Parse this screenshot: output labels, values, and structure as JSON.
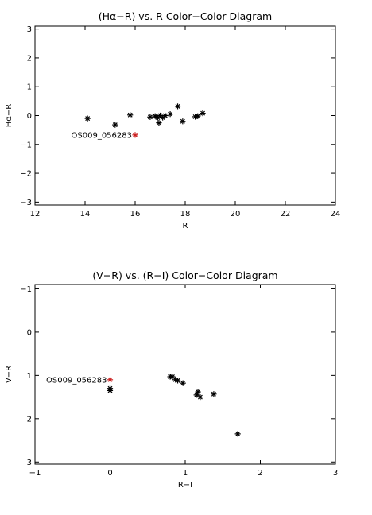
{
  "chart_data": [
    {
      "type": "scatter",
      "title": "(Hα−R) vs. R Color−Color Diagram",
      "xlabel": "R",
      "ylabel": "Hα−R",
      "xlim": [
        12,
        24
      ],
      "ylim": [
        -3.1,
        3.1
      ],
      "y_inverted": false,
      "xticks": [
        "12",
        "14",
        "16",
        "18",
        "20",
        "22",
        "24"
      ],
      "xtick_values": [
        12,
        14,
        16,
        18,
        20,
        22,
        24
      ],
      "yticks": [
        "3",
        "2",
        "1",
        "0",
        "−1",
        "−2",
        "−3"
      ],
      "ytick_values": [
        3,
        2,
        1,
        0,
        -1,
        -2,
        -3
      ],
      "grid": false,
      "marker": "asterisk",
      "series": [
        {
          "color": "#000000",
          "points": [
            [
              14.1,
              -0.1
            ],
            [
              15.2,
              -0.32
            ],
            [
              15.8,
              0.02
            ],
            [
              16.6,
              -0.05
            ],
            [
              16.8,
              -0.02
            ],
            [
              16.9,
              -0.07
            ],
            [
              16.95,
              -0.25
            ],
            [
              17.0,
              0.0
            ],
            [
              17.1,
              -0.07
            ],
            [
              17.2,
              0.0
            ],
            [
              17.4,
              0.05
            ],
            [
              17.7,
              0.32
            ],
            [
              17.9,
              -0.2
            ],
            [
              18.4,
              -0.04
            ],
            [
              18.5,
              -0.02
            ],
            [
              18.7,
              0.08
            ]
          ]
        },
        {
          "color": "#cc2222",
          "points": [
            [
              16.0,
              -0.67
            ]
          ]
        }
      ],
      "annotations": [
        {
          "text": "OS009_056283",
          "x": 16.0,
          "y": -0.67
        }
      ]
    },
    {
      "type": "scatter",
      "title": "(V−R) vs. (R−I) Color−Color Diagram",
      "xlabel": "R−I",
      "ylabel": "V−R",
      "xlim": [
        -1,
        3
      ],
      "ylim": [
        3.05,
        -1.1
      ],
      "y_inverted": true,
      "xticks": [
        "−1",
        "0",
        "1",
        "2",
        "3"
      ],
      "xtick_values": [
        -1,
        0,
        1,
        2,
        3
      ],
      "yticks": [
        "−1",
        "0",
        "1",
        "2",
        "3"
      ],
      "ytick_values": [
        -1,
        0,
        1,
        2,
        3
      ],
      "grid": false,
      "marker": "asterisk",
      "series": [
        {
          "color": "#000000",
          "points": [
            [
              0.0,
              1.3
            ],
            [
              0.0,
              1.35
            ],
            [
              0.8,
              1.03
            ],
            [
              0.83,
              1.03
            ],
            [
              0.87,
              1.1
            ],
            [
              0.9,
              1.12
            ],
            [
              0.97,
              1.18
            ],
            [
              1.15,
              1.45
            ],
            [
              1.17,
              1.38
            ],
            [
              1.2,
              1.5
            ],
            [
              1.38,
              1.43
            ],
            [
              1.7,
              2.35
            ]
          ]
        },
        {
          "color": "#cc2222",
          "points": [
            [
              0.0,
              1.1
            ]
          ]
        }
      ],
      "annotations": [
        {
          "text": "OS009_056283",
          "x": 0.0,
          "y": 1.1
        }
      ]
    }
  ]
}
